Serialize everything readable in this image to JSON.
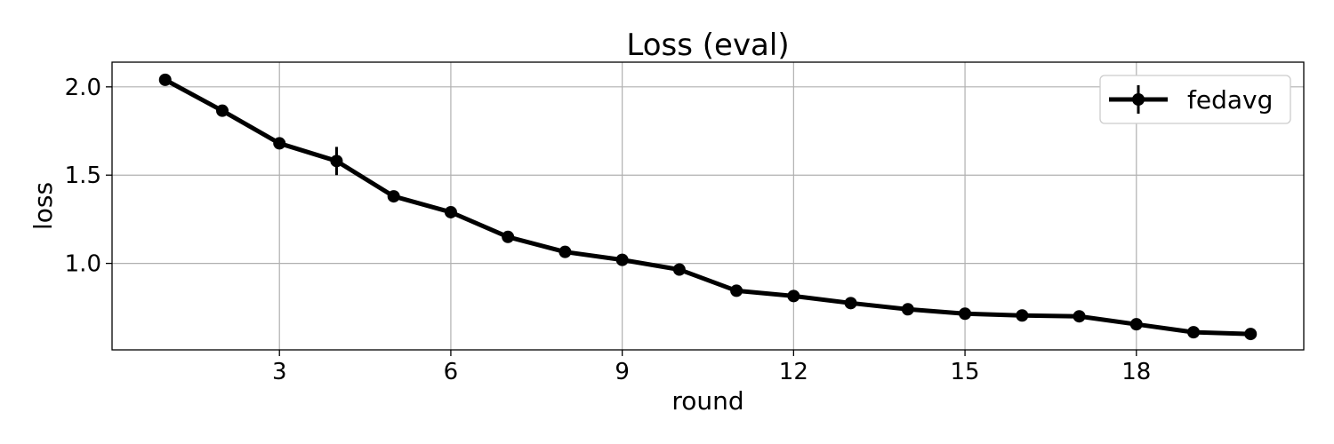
{
  "chart_data": {
    "type": "line",
    "title": "Loss (eval)",
    "xlabel": "round",
    "ylabel": "loss",
    "xlim": [
      0.07,
      20.93
    ],
    "ylim": [
      0.51,
      2.14
    ],
    "xticks": [
      3,
      6,
      9,
      12,
      15,
      18
    ],
    "xtick_labels": [
      "3",
      "6",
      "9",
      "12",
      "15",
      "18"
    ],
    "yticks": [
      1.0,
      1.5,
      2.0
    ],
    "ytick_labels": [
      "1.0",
      "1.5",
      "2.0"
    ],
    "grid": true,
    "legend_position": "top-right",
    "line_color": "#000000",
    "series": [
      {
        "name": "fedavg",
        "x": [
          1,
          2,
          3,
          4,
          5,
          6,
          7,
          8,
          9,
          10,
          11,
          12,
          13,
          14,
          15,
          16,
          17,
          18,
          19,
          20
        ],
        "y": [
          2.04,
          1.865,
          1.68,
          1.58,
          1.38,
          1.29,
          1.15,
          1.065,
          1.02,
          0.965,
          0.845,
          0.815,
          0.775,
          0.74,
          0.715,
          0.705,
          0.7,
          0.655,
          0.61,
          0.6
        ],
        "err": [
          0.012,
          0.025,
          0.012,
          0.08,
          0.012,
          0.025,
          0.012,
          0.012,
          0.012,
          0.035,
          0.012,
          0.012,
          0.012,
          0.012,
          0.012,
          0.012,
          0.012,
          0.012,
          0.012,
          0.012
        ]
      }
    ]
  }
}
